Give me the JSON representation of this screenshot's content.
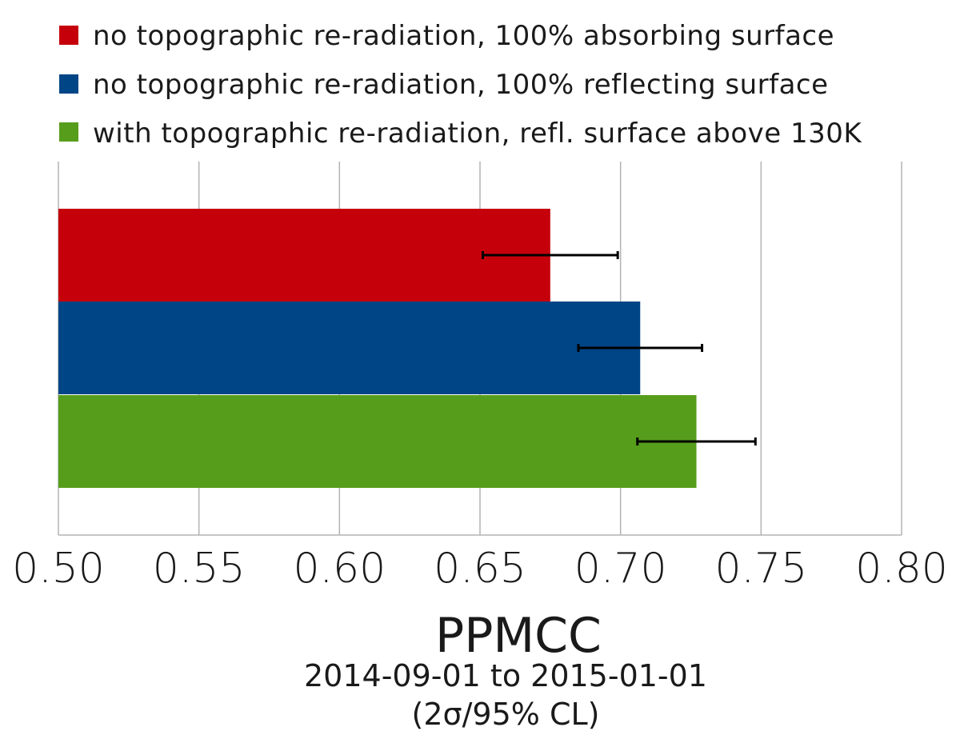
{
  "chart_data": {
    "type": "bar",
    "orientation": "horizontal",
    "title": "",
    "xlabel": "PPMCC",
    "subtitle_lines": [
      "2014-09-01 to 2015-01-01",
      "(2σ/95% CL)"
    ],
    "xlim": [
      0.5,
      0.8
    ],
    "xticks": [
      0.5,
      0.55,
      0.6,
      0.65,
      0.7,
      0.75,
      0.8
    ],
    "xtick_labels": [
      "0.50",
      "0.55",
      "0.60",
      "0.65",
      "0.70",
      "0.75",
      "0.80"
    ],
    "grid": true,
    "legend_position": "top",
    "series": [
      {
        "name": "no topographic re-radiation, 100% absorbing surface",
        "value": 0.675,
        "error_low": 0.651,
        "error_high": 0.699,
        "color": "#c5000b"
      },
      {
        "name": "no topographic re-radiation, 100% reflecting surface",
        "value": 0.707,
        "error_low": 0.685,
        "error_high": 0.729,
        "color": "#004586"
      },
      {
        "name": "with topographic re-radiation, refl. surface above 130K",
        "value": 0.727,
        "error_low": 0.706,
        "error_high": 0.748,
        "color": "#579d1c"
      }
    ]
  }
}
